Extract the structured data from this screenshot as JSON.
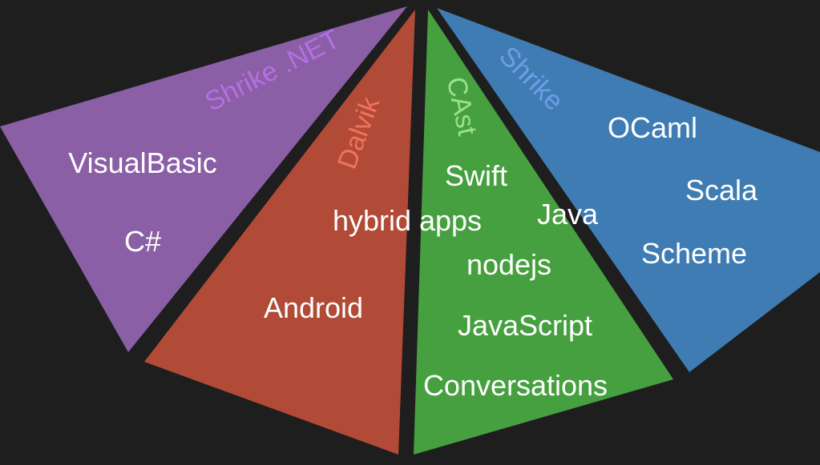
{
  "colors": {
    "background": "#1e1e1e",
    "purple": "#8a5fa6",
    "red": "#b14a36",
    "green": "#46a040",
    "blue": "#3f7cb3",
    "item_text": "#ffffff",
    "label_purple": "#b46fe3",
    "label_red": "#f0725c",
    "label_green": "#9be08c",
    "label_blue": "#6e9de8"
  },
  "segments": {
    "purple": {
      "label": "Shrike .NET",
      "items": [
        "VisualBasic",
        "C#"
      ]
    },
    "red": {
      "label": "Dalvik",
      "items": [
        "Android"
      ]
    },
    "green": {
      "label": "CAst",
      "items": [
        "Swift",
        "nodejs",
        "JavaScript",
        "Conversations"
      ]
    },
    "blue": {
      "label": "Shrike",
      "items": [
        "OCaml",
        "Scala",
        "Scheme"
      ]
    }
  },
  "shared_items": {
    "hybrid_apps": "hybrid apps",
    "java": "Java"
  }
}
